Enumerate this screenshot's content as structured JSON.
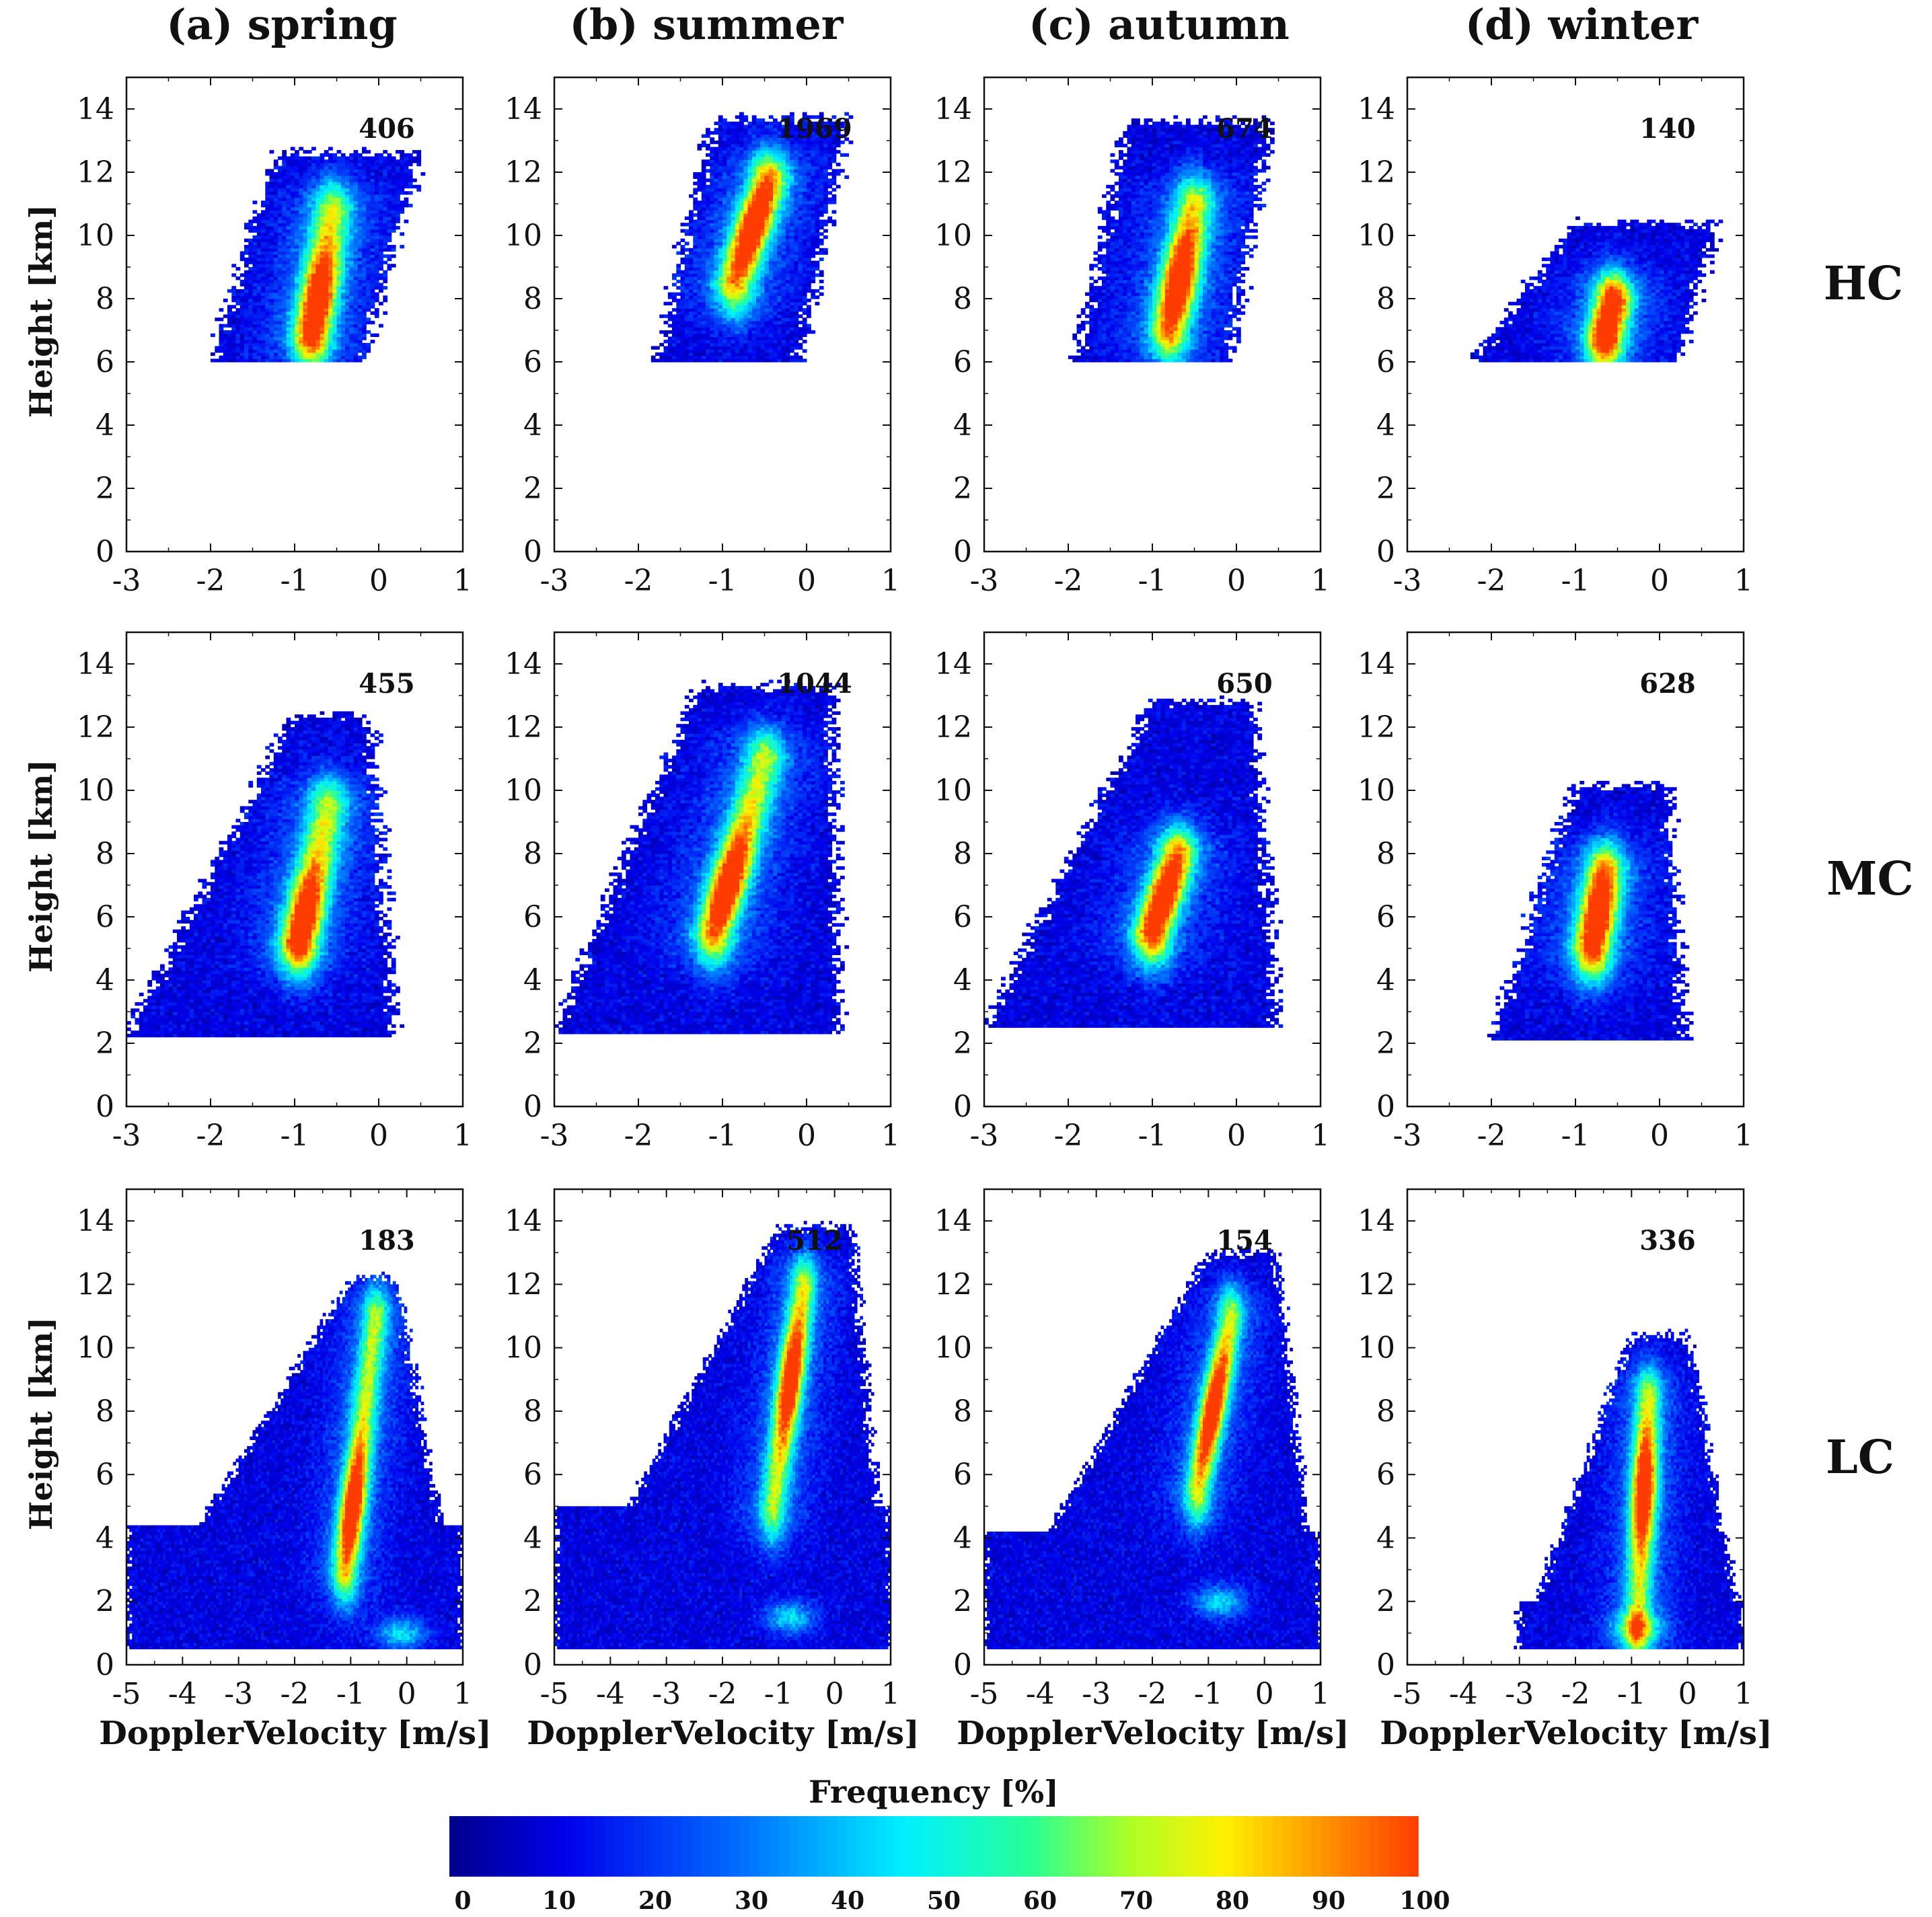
{
  "figure": {
    "seasons": [
      "(a) spring",
      "(b) summer",
      "(c) autumn",
      "(d) winter"
    ],
    "row_labels": [
      "HC",
      "MC",
      "LC"
    ],
    "ylabel": "Height [km]",
    "xlabel": "DopplerVelocity [m/s]",
    "colorbar": {
      "title": "Frequency [%]",
      "ticks": [
        "0",
        "10",
        "20",
        "30",
        "40",
        "50",
        "60",
        "70",
        "80",
        "90",
        "100"
      ],
      "min": 0,
      "max": 100
    }
  },
  "chart_data": [
    {
      "type": "heatmap",
      "title": "(a) spring",
      "cloud_type": "HC",
      "count": "406",
      "xlim": [
        -3,
        1
      ],
      "ylim": [
        0,
        15
      ],
      "xticks": [
        "-3",
        "-2",
        "-1",
        "0",
        "1"
      ],
      "yticks": [
        "0",
        "2",
        "4",
        "6",
        "8",
        "10",
        "12",
        "14"
      ],
      "xlabel": "",
      "ylabel": "Height [km]",
      "distribution": {
        "y_min": 6.0,
        "y_max": 12.6,
        "x_left_low": -2.0,
        "x_right_low": -0.2,
        "x_left_high": -1.2,
        "x_right_high": 0.5,
        "core_x_low": -0.8,
        "core_x_high": -0.55,
        "core_y_low": 6.8,
        "core_y_high": 10.8,
        "peak_height": 7.8
      }
    },
    {
      "type": "heatmap",
      "title": "(b) summer",
      "cloud_type": "HC",
      "count": "1969",
      "xlim": [
        -3,
        1
      ],
      "ylim": [
        0,
        15
      ],
      "xticks": [
        "-3",
        "-2",
        "-1",
        "0",
        "1"
      ],
      "yticks": [
        "0",
        "2",
        "4",
        "6",
        "8",
        "10",
        "12",
        "14"
      ],
      "xlabel": "",
      "ylabel": "",
      "distribution": {
        "y_min": 6.0,
        "y_max": 13.7,
        "x_left_low": -1.8,
        "x_right_low": -0.1,
        "x_left_high": -1.1,
        "x_right_high": 0.5,
        "core_x_low": -0.85,
        "core_x_high": -0.45,
        "core_y_low": 8.5,
        "core_y_high": 11.8,
        "peak_height": 10.3
      }
    },
    {
      "type": "heatmap",
      "title": "(c) autumn",
      "cloud_type": "HC",
      "count": "674",
      "xlim": [
        -3,
        1
      ],
      "ylim": [
        0,
        15
      ],
      "xticks": [
        "-3",
        "-2",
        "-1",
        "0",
        "1"
      ],
      "yticks": [
        "0",
        "2",
        "4",
        "6",
        "8",
        "10",
        "12",
        "14"
      ],
      "xlabel": "",
      "ylabel": "",
      "distribution": {
        "y_min": 6.0,
        "y_max": 13.6,
        "x_left_low": -1.9,
        "x_right_low": -0.1,
        "x_left_high": -1.3,
        "x_right_high": 0.4,
        "core_x_low": -0.8,
        "core_x_high": -0.5,
        "core_y_low": 7.0,
        "core_y_high": 11.0,
        "peak_height": 8.5
      }
    },
    {
      "type": "heatmap",
      "title": "(d) winter",
      "cloud_type": "HC",
      "count": "140",
      "xlim": [
        -3,
        1
      ],
      "ylim": [
        0,
        15
      ],
      "xticks": [
        "-3",
        "-2",
        "-1",
        "0",
        "1"
      ],
      "yticks": [
        "0",
        "2",
        "4",
        "6",
        "8",
        "10",
        "12",
        "14"
      ],
      "xlabel": "",
      "ylabel": "",
      "distribution": {
        "y_min": 6.0,
        "y_max": 10.4,
        "x_left_low": -2.2,
        "x_right_low": 0.2,
        "x_left_high": -1.0,
        "x_right_high": 0.7,
        "core_x_low": -0.65,
        "core_x_high": -0.55,
        "core_y_low": 6.8,
        "core_y_high": 8.0,
        "peak_height": 7.2
      }
    },
    {
      "type": "heatmap",
      "title": "(a) spring",
      "cloud_type": "MC",
      "count": "455",
      "xlim": [
        -3,
        1
      ],
      "ylim": [
        0,
        15
      ],
      "xticks": [
        "-3",
        "-2",
        "-1",
        "0",
        "1"
      ],
      "yticks": [
        "0",
        "2",
        "4",
        "6",
        "8",
        "10",
        "12",
        "14"
      ],
      "xlabel": "",
      "ylabel": "Height [km]",
      "distribution": {
        "y_min": 2.2,
        "y_max": 12.4,
        "x_left_low": -3.0,
        "x_right_low": 0.2,
        "x_left_high": -1.0,
        "x_right_high": -0.1,
        "core_x_low": -0.95,
        "core_x_high": -0.6,
        "core_y_low": 5.2,
        "core_y_high": 9.5,
        "peak_height": 5.8
      }
    },
    {
      "type": "heatmap",
      "title": "(b) summer",
      "cloud_type": "MC",
      "count": "1044",
      "xlim": [
        -3,
        1
      ],
      "ylim": [
        0,
        15
      ],
      "xticks": [
        "-3",
        "-2",
        "-1",
        "0",
        "1"
      ],
      "yticks": [
        "0",
        "2",
        "4",
        "6",
        "8",
        "10",
        "12",
        "14"
      ],
      "xlabel": "",
      "ylabel": "",
      "distribution": {
        "y_min": 2.3,
        "y_max": 13.3,
        "x_left_low": -3.0,
        "x_right_low": 0.4,
        "x_left_high": -1.3,
        "x_right_high": 0.3,
        "core_x_low": -1.1,
        "core_x_high": -0.5,
        "core_y_low": 5.5,
        "core_y_high": 11.0,
        "peak_height": 7.0
      }
    },
    {
      "type": "heatmap",
      "title": "(c) autumn",
      "cloud_type": "MC",
      "count": "650",
      "xlim": [
        -3,
        1
      ],
      "ylim": [
        0,
        15
      ],
      "xticks": [
        "-3",
        "-2",
        "-1",
        "0",
        "1"
      ],
      "yticks": [
        "0",
        "2",
        "4",
        "6",
        "8",
        "10",
        "12",
        "14"
      ],
      "xlabel": "",
      "ylabel": "",
      "distribution": {
        "y_min": 2.5,
        "y_max": 12.8,
        "x_left_low": -3.0,
        "x_right_low": 0.5,
        "x_left_high": -1.0,
        "x_right_high": 0.2,
        "core_x_low": -1.0,
        "core_x_high": -0.7,
        "core_y_low": 5.5,
        "core_y_high": 8.0,
        "peak_height": 6.5
      }
    },
    {
      "type": "heatmap",
      "title": "(d) winter",
      "cloud_type": "MC",
      "count": "628",
      "xlim": [
        -3,
        1
      ],
      "ylim": [
        0,
        15
      ],
      "xticks": [
        "-3",
        "-2",
        "-1",
        "0",
        "1"
      ],
      "yticks": [
        "0",
        "2",
        "4",
        "6",
        "8",
        "10",
        "12",
        "14"
      ],
      "xlabel": "",
      "ylabel": "",
      "distribution": {
        "y_min": 2.1,
        "y_max": 10.2,
        "x_left_low": -2.0,
        "x_right_low": 0.3,
        "x_left_high": -1.0,
        "x_right_high": 0.1,
        "core_x_low": -0.8,
        "core_x_high": -0.65,
        "core_y_low": 5.0,
        "core_y_high": 7.5,
        "peak_height": 6.0
      }
    },
    {
      "type": "heatmap",
      "title": "(a) spring",
      "cloud_type": "LC",
      "count": "183",
      "xlim": [
        -5,
        1
      ],
      "ylim": [
        0,
        15
      ],
      "xticks": [
        "-5",
        "-4",
        "-3",
        "-2",
        "-1",
        "0",
        "1"
      ],
      "yticks": [
        "0",
        "2",
        "4",
        "6",
        "8",
        "10",
        "12",
        "14"
      ],
      "xlabel": "DopplerVelocity [m/s]",
      "ylabel": "Height [km]",
      "distribution": {
        "y_min": 0.5,
        "y_max": 12.2,
        "x_left_low": -5.0,
        "x_right_low": 1.0,
        "x_left_high": -1.0,
        "x_right_high": -0.2,
        "core_x_low": -1.1,
        "core_x_high": -0.55,
        "core_y_low": 3.0,
        "core_y_high": 11.0,
        "peak_height": 5.0,
        "low_band_top": 4.4,
        "low_blob": [
          -0.1,
          1.0
        ]
      }
    },
    {
      "type": "heatmap",
      "title": "(b) summer",
      "cloud_type": "LC",
      "count": "512",
      "xlim": [
        -5,
        1
      ],
      "ylim": [
        0,
        15
      ],
      "xticks": [
        "-5",
        "-4",
        "-3",
        "-2",
        "-1",
        "0",
        "1"
      ],
      "yticks": [
        "0",
        "2",
        "4",
        "6",
        "8",
        "10",
        "12",
        "14"
      ],
      "xlabel": "DopplerVelocity [m/s]",
      "ylabel": "",
      "distribution": {
        "y_min": 0.5,
        "y_max": 13.8,
        "x_left_low": -5.0,
        "x_right_low": 1.0,
        "x_left_high": -1.0,
        "x_right_high": 0.3,
        "core_x_low": -1.1,
        "core_x_high": -0.55,
        "core_y_low": 5.0,
        "core_y_high": 12.0,
        "peak_height": 9.0,
        "low_band_top": 5.0,
        "low_blob": [
          -0.8,
          1.5
        ]
      }
    },
    {
      "type": "heatmap",
      "title": "(c) autumn",
      "cloud_type": "LC",
      "count": "154",
      "xlim": [
        -5,
        1
      ],
      "ylim": [
        0,
        15
      ],
      "xticks": [
        "-5",
        "-4",
        "-3",
        "-2",
        "-1",
        "0",
        "1"
      ],
      "yticks": [
        "0",
        "2",
        "4",
        "6",
        "8",
        "10",
        "12",
        "14"
      ],
      "xlabel": "DopplerVelocity [m/s]",
      "ylabel": "",
      "distribution": {
        "y_min": 0.5,
        "y_max": 13.0,
        "x_left_low": -5.0,
        "x_right_low": 1.0,
        "x_left_high": -1.0,
        "x_right_high": 0.2,
        "core_x_low": -1.2,
        "core_x_high": -0.6,
        "core_y_low": 5.5,
        "core_y_high": 11.0,
        "peak_height": 8.0,
        "low_band_top": 4.2,
        "low_blob": [
          -0.8,
          2.0
        ]
      }
    },
    {
      "type": "heatmap",
      "title": "(d) winter",
      "cloud_type": "LC",
      "count": "336",
      "xlim": [
        -5,
        1
      ],
      "ylim": [
        0,
        15
      ],
      "xticks": [
        "-5",
        "-4",
        "-3",
        "-2",
        "-1",
        "0",
        "1"
      ],
      "yticks": [
        "0",
        "2",
        "4",
        "6",
        "8",
        "10",
        "12",
        "14"
      ],
      "xlabel": "DopplerVelocity [m/s]",
      "ylabel": "",
      "distribution": {
        "y_min": 0.5,
        "y_max": 10.4,
        "x_left_low": -3.0,
        "x_right_low": 1.0,
        "x_left_high": -1.0,
        "x_right_high": 0.0,
        "core_x_low": -0.9,
        "core_x_high": -0.7,
        "core_y_low": 1.0,
        "core_y_high": 8.5,
        "peak_height": 5.5,
        "low_band_top": 2.0,
        "low_blob": [
          -0.9,
          1.2
        ]
      }
    }
  ]
}
